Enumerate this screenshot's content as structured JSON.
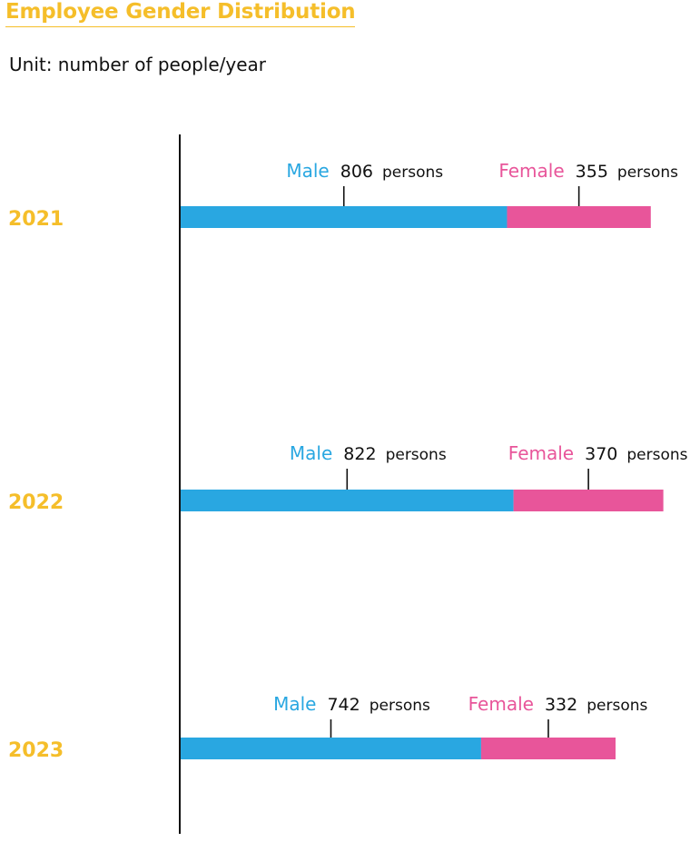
{
  "title": "Employee Gender Distribution",
  "unit_label": "Unit: number of people/year",
  "colors": {
    "title": "#F5BE2A",
    "year": "#F5BE2A",
    "male": "#29A7E1",
    "female": "#E8559A",
    "axis": "#111111"
  },
  "chart_data": {
    "type": "bar",
    "orientation": "horizontal",
    "stacked": true,
    "title": "Employee Gender Distribution",
    "categories": [
      "2021",
      "2022",
      "2023"
    ],
    "unit_word": "persons",
    "series": [
      {
        "name": "Male",
        "values": [
          806,
          822,
          742
        ]
      },
      {
        "name": "Female",
        "values": [
          355,
          370,
          332
        ]
      }
    ]
  }
}
